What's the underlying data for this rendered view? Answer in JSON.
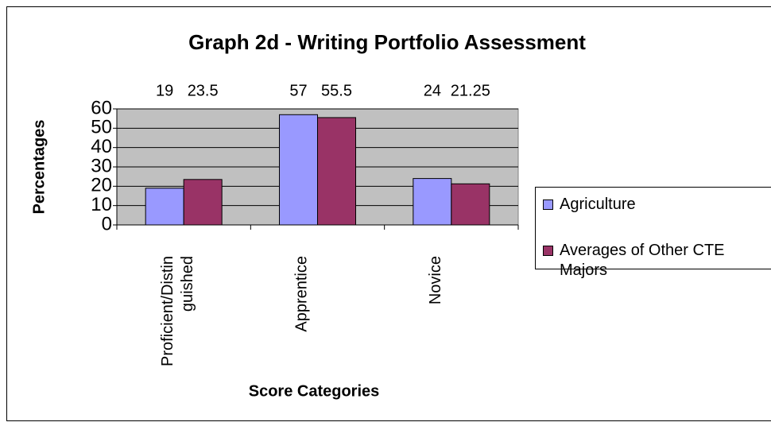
{
  "chart_data": {
    "type": "bar",
    "title": "Graph 2d - Writing Portfolio Assessment",
    "x_label": "Score Categories",
    "y_label": "Percentages",
    "categories": [
      "Proficient/Distinguished",
      "Apprentice",
      "Novice"
    ],
    "series": [
      {
        "name": "Agriculture",
        "color": "#9999ff",
        "values": [
          19,
          57,
          24
        ]
      },
      {
        "name": "Averages of Other CTE Majors",
        "color": "#993366",
        "values": [
          23.5,
          55.5,
          21.25
        ]
      }
    ],
    "ylim": [
      0,
      60
    ],
    "yticks": [
      0,
      10,
      20,
      30,
      40,
      50,
      60
    ],
    "grid": true,
    "legend": "right",
    "plot_background": "#c0c0c0"
  }
}
